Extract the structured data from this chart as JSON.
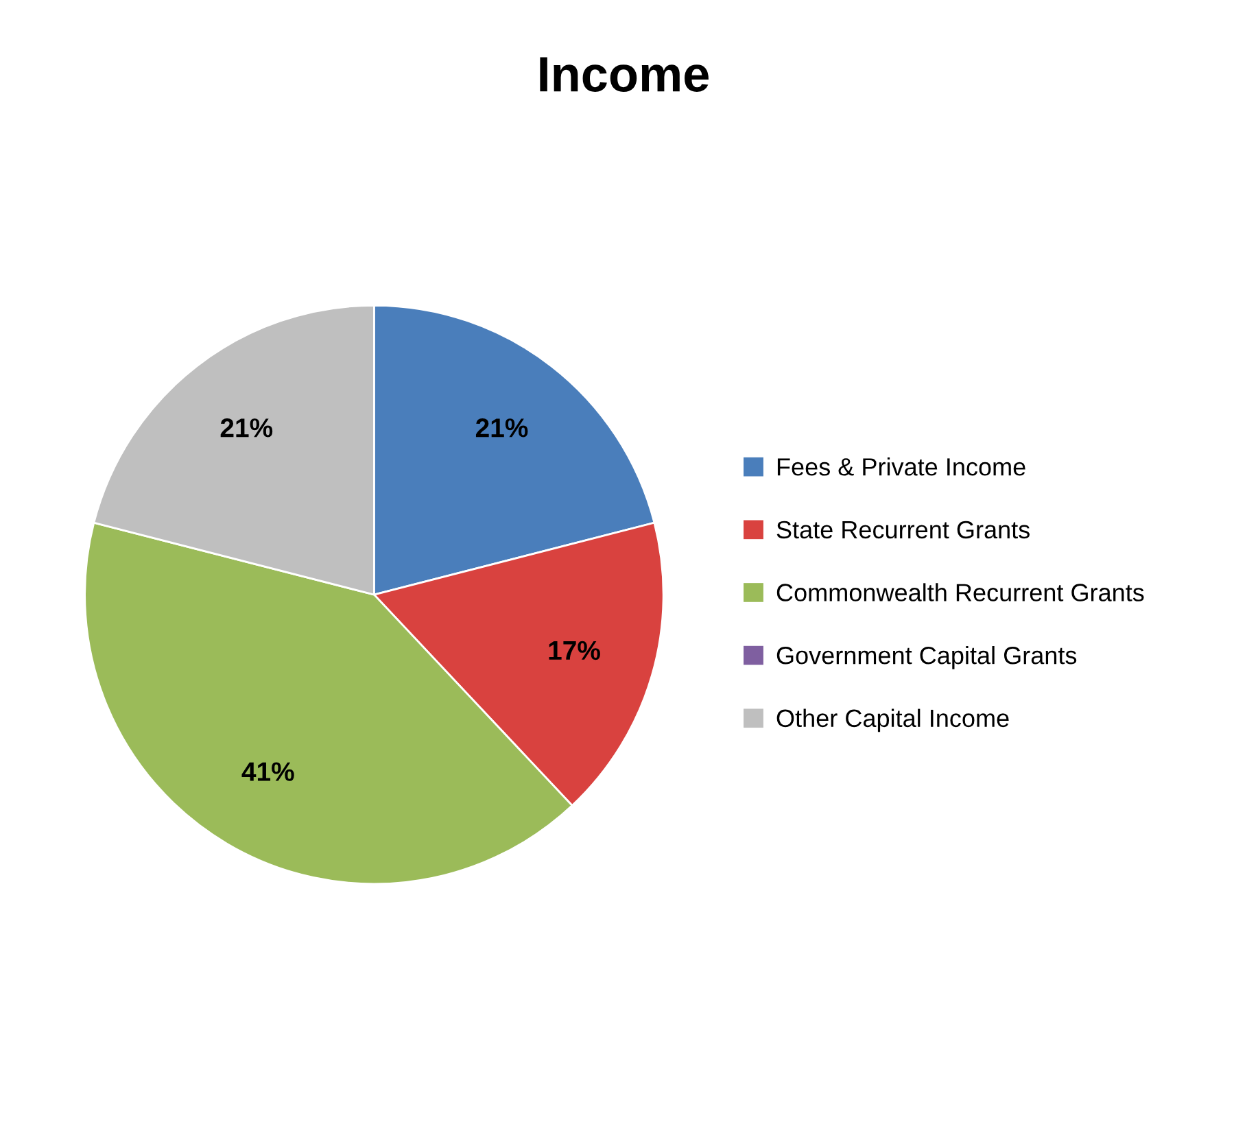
{
  "chart_data": {
    "type": "pie",
    "title": "Income",
    "categories": [
      "Fees & Private Income",
      "State Recurrent Grants",
      "Commonwealth Recurrent Grants",
      "Government Capital Grants",
      "Other Capital Income"
    ],
    "values": [
      21,
      17,
      41,
      0,
      21
    ],
    "value_labels": [
      "21%",
      "17%",
      "41%",
      null,
      "21%"
    ],
    "colors": [
      "#4a7ebb",
      "#d9423f",
      "#9bbb59",
      "#7f5fa0",
      "#bfbfbf"
    ],
    "legend": "right"
  }
}
